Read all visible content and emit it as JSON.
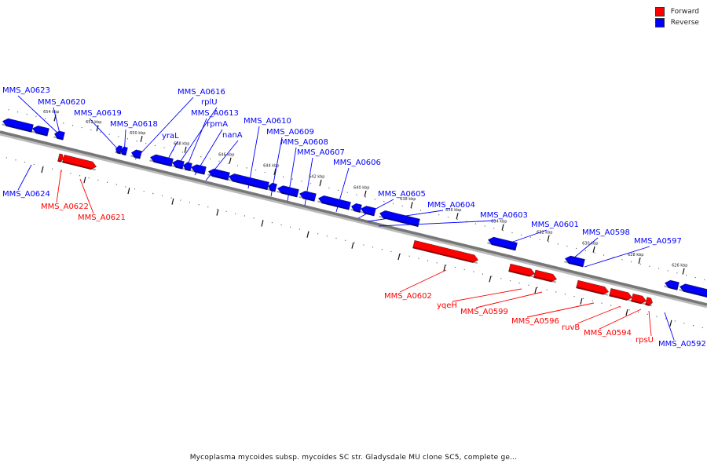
{
  "legend": {
    "forward_label": "Forward",
    "reverse_label": "Reverse",
    "forward_color": "#ff0000",
    "reverse_color": "#0000ff"
  },
  "caption": "Mycoplasma mycoides subsp. mycoides SC str. Gladysdale MU clone SC5, complete ge...",
  "ticks": [
    "654 kbp",
    "652 kbp",
    "650 kbp",
    "648 kbp",
    "646 kbp",
    "644 kbp",
    "642 kbp",
    "640 kbp",
    "638 kbp",
    "636 kbp",
    "634 kbp",
    "632 kbp",
    "630 kbp",
    "628 kbp",
    "626 kbp"
  ],
  "genes": [
    {
      "name": "MMS_A0623",
      "strand": "reverse"
    },
    {
      "name": "MMS_A0620",
      "strand": "reverse"
    },
    {
      "name": "MMS_A0619",
      "strand": "reverse"
    },
    {
      "name": "MMS_A0618",
      "strand": "reverse"
    },
    {
      "name": "MMS_A0616",
      "strand": "reverse"
    },
    {
      "name": "rplU",
      "strand": "reverse"
    },
    {
      "name": "MMS_A0613",
      "strand": "reverse"
    },
    {
      "name": "rpmA",
      "strand": "reverse"
    },
    {
      "name": "yraL",
      "strand": "reverse"
    },
    {
      "name": "nanA",
      "strand": "reverse"
    },
    {
      "name": "MMS_A0610",
      "strand": "reverse"
    },
    {
      "name": "MMS_A0609",
      "strand": "reverse"
    },
    {
      "name": "MMS_A0608",
      "strand": "reverse"
    },
    {
      "name": "MMS_A0607",
      "strand": "reverse"
    },
    {
      "name": "MMS_A0606",
      "strand": "reverse"
    },
    {
      "name": "MMS_A0605",
      "strand": "reverse"
    },
    {
      "name": "MMS_A0604",
      "strand": "reverse"
    },
    {
      "name": "MMS_A0603",
      "strand": "reverse"
    },
    {
      "name": "MMS_A0601",
      "strand": "reverse"
    },
    {
      "name": "MMS_A0598",
      "strand": "reverse"
    },
    {
      "name": "MMS_A0597",
      "strand": "reverse"
    },
    {
      "name": "MMS_A0624",
      "strand": "reverse"
    },
    {
      "name": "MMS_A0592",
      "strand": "reverse"
    },
    {
      "name": "MMS_A0622",
      "strand": "forward"
    },
    {
      "name": "MMS_A0621",
      "strand": "forward"
    },
    {
      "name": "MMS_A0602",
      "strand": "forward"
    },
    {
      "name": "yqeH",
      "strand": "forward"
    },
    {
      "name": "MMS_A0599",
      "strand": "forward"
    },
    {
      "name": "MMS_A0596",
      "strand": "forward"
    },
    {
      "name": "ruvB",
      "strand": "forward"
    },
    {
      "name": "MMS_A0594",
      "strand": "forward"
    },
    {
      "name": "rpsU",
      "strand": "forward"
    }
  ]
}
